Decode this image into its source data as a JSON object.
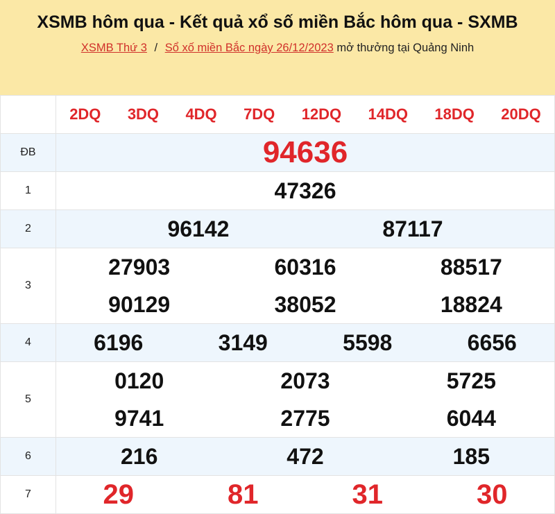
{
  "header": {
    "title": "XSMB hôm qua - Kết quả xổ số miền Bắc hôm qua - SXMB",
    "breadcrumb": {
      "link1": "XSMB Thứ 3",
      "separator": "/",
      "link2": "Sổ xố miền Bắc ngày 26/12/2023",
      "suffix": "mở thưởng tại Quảng Ninh"
    }
  },
  "dq_codes": [
    "2DQ",
    "3DQ",
    "4DQ",
    "7DQ",
    "12DQ",
    "14DQ",
    "18DQ",
    "20DQ"
  ],
  "prizes": [
    {
      "label": "ĐB",
      "lines": [
        [
          "94636"
        ]
      ]
    },
    {
      "label": "1",
      "lines": [
        [
          "47326"
        ]
      ]
    },
    {
      "label": "2",
      "lines": [
        [
          "96142",
          "87117"
        ]
      ]
    },
    {
      "label": "3",
      "lines": [
        [
          "27903",
          "60316",
          "88517"
        ],
        [
          "90129",
          "38052",
          "18824"
        ]
      ]
    },
    {
      "label": "4",
      "lines": [
        [
          "6196",
          "3149",
          "5598",
          "6656"
        ]
      ]
    },
    {
      "label": "5",
      "lines": [
        [
          "0120",
          "2073",
          "5725"
        ],
        [
          "9741",
          "2775",
          "6044"
        ]
      ]
    },
    {
      "label": "6",
      "lines": [
        [
          "216",
          "472",
          "185"
        ]
      ]
    },
    {
      "label": "7",
      "lines": [
        [
          "29",
          "81",
          "31",
          "30"
        ]
      ]
    }
  ],
  "colors": {
    "accent_red": "#e0262a",
    "header_bg": "#fbe8a6",
    "alt_row": "#eef6fd"
  }
}
